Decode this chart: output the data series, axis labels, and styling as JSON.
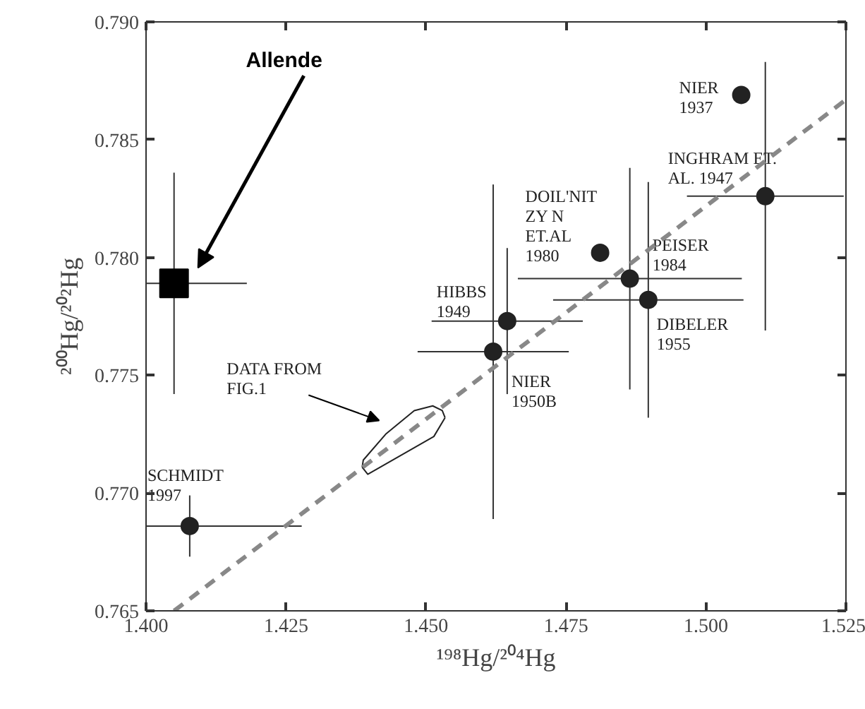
{
  "chart_data": {
    "type": "scatter",
    "xlabel": "¹⁹⁸Hg/²⁰⁴Hg",
    "ylabel": "²⁰⁰Hg/²⁰²Hg",
    "xlim": [
      1.4,
      1.525
    ],
    "ylim": [
      0.765,
      0.79
    ],
    "xticks": [
      {
        "value": 1.4,
        "label": "1.400"
      },
      {
        "value": 1.425,
        "label": "1.425"
      },
      {
        "value": 1.45,
        "label": "1.450"
      },
      {
        "value": 1.475,
        "label": "1.475"
      },
      {
        "value": 1.5,
        "label": "1.500"
      },
      {
        "value": 1.525,
        "label": "1.525"
      }
    ],
    "yticks": [
      {
        "value": 0.765,
        "label": "0.765"
      },
      {
        "value": 0.77,
        "label": "0.770"
      },
      {
        "value": 0.775,
        "label": "0.775"
      },
      {
        "value": 0.78,
        "label": "0.780"
      },
      {
        "value": 0.785,
        "label": "0.785"
      },
      {
        "value": 0.79,
        "label": "0.790"
      }
    ],
    "grid": false,
    "marker": "circle",
    "series": [
      {
        "name": "Allende",
        "color": "#000000",
        "marker": "square",
        "x": [
          1.405
        ],
        "values": [
          0.7789
        ],
        "xerrors": [
          0.013
        ],
        "errors": [
          0.0047
        ]
      },
      {
        "name": "NIER\n1937",
        "color": "#222222",
        "x": [
          1.5063
        ],
        "values": [
          0.7869
        ]
      },
      {
        "name": "INGHRAM ET.\nAL. 1947",
        "color": "#222222",
        "x": [
          1.5106
        ],
        "values": [
          0.7826
        ],
        "xerrors": [
          0.014
        ],
        "errors": [
          0.0057
        ]
      },
      {
        "name": "DOIL'NIT\nZY N\nET.AL\n1980",
        "color": "#222222",
        "x": [
          1.4811
        ],
        "values": [
          0.7802
        ]
      },
      {
        "name": "PEISER\n1984",
        "color": "#222222",
        "x": [
          1.4864
        ],
        "values": [
          0.7791
        ],
        "xerrors": [
          0.02
        ],
        "errors": [
          0.0047
        ]
      },
      {
        "name": "HIBBS\n1949",
        "color": "#222222",
        "x": [
          1.4645
        ],
        "values": [
          0.7773
        ],
        "xerrors": [
          0.0135
        ],
        "errors": [
          0.0031
        ]
      },
      {
        "name": "DIBELER\n1955",
        "color": "#222222",
        "x": [
          1.4897
        ],
        "values": [
          0.7782
        ],
        "xerrors": [
          0.017
        ],
        "errors": [
          0.005
        ]
      },
      {
        "name": "NIER\n1950B",
        "color": "#222222",
        "x": [
          1.462
        ],
        "values": [
          0.776
        ],
        "xerrors": [
          0.0135
        ],
        "errors": [
          0.0071
        ]
      },
      {
        "name": "SCHMIDT\n1997",
        "color": "#222222",
        "x": [
          1.4078
        ],
        "values": [
          0.7686
        ],
        "xerrors": [
          0.02
        ],
        "errors": [
          0.0013
        ]
      },
      {
        "name": "DATA FROM\nFIG.1",
        "type": "line",
        "marker": "none",
        "line_style": "solid",
        "color": "#222222",
        "x": [
          1.4386,
          1.4388,
          1.4428,
          1.4479,
          1.4512,
          1.4529,
          1.4534
        ],
        "values": [
          0.7711,
          0.7714,
          0.7725,
          0.7735,
          0.7737,
          0.7735,
          0.7732
        ]
      },
      {
        "type": "line",
        "marker": "none",
        "line_style": "solid",
        "color": "#222222",
        "x": [
          1.4386,
          1.4396,
          1.4514,
          1.4534
        ],
        "values": [
          0.7711,
          0.7708,
          0.7724,
          0.7732
        ]
      },
      {
        "type": "line",
        "marker": "none",
        "line_style": "dashed",
        "color": "#888888",
        "x": [
          1.405,
          1.525
        ],
        "values": [
          0.765,
          0.7867
        ]
      }
    ]
  }
}
